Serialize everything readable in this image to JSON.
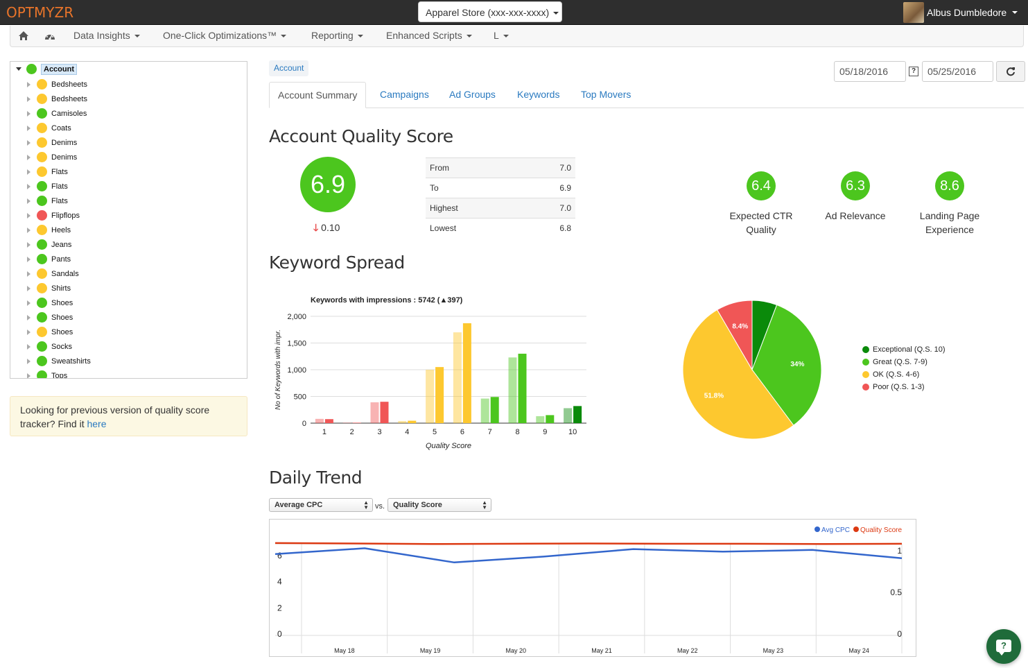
{
  "app": {
    "logo": "OPTMYZR",
    "store": "Apparel Store (xxx-xxx-xxxx)",
    "user": "Albus Dumbledore"
  },
  "nav": {
    "items": [
      "Data Insights",
      "One-Click Optimizations™",
      "Reporting",
      "Enhanced Scripts",
      "L"
    ]
  },
  "tree": {
    "root": "Account",
    "items": [
      {
        "label": "Bedsheets",
        "status": "yellow"
      },
      {
        "label": "Bedsheets",
        "status": "yellow"
      },
      {
        "label": "Camisoles",
        "status": "green"
      },
      {
        "label": "Coats",
        "status": "yellow"
      },
      {
        "label": "Denims",
        "status": "yellow"
      },
      {
        "label": "Denims",
        "status": "yellow"
      },
      {
        "label": "Flats",
        "status": "yellow"
      },
      {
        "label": "Flats",
        "status": "green"
      },
      {
        "label": "Flats",
        "status": "green"
      },
      {
        "label": "Flipflops",
        "status": "red"
      },
      {
        "label": "Heels",
        "status": "yellow"
      },
      {
        "label": "Jeans",
        "status": "green"
      },
      {
        "label": "Pants",
        "status": "green"
      },
      {
        "label": "Sandals",
        "status": "yellow"
      },
      {
        "label": "Shirts",
        "status": "yellow"
      },
      {
        "label": "Shoes",
        "status": "green"
      },
      {
        "label": "Shoes",
        "status": "green"
      },
      {
        "label": "Shoes",
        "status": "yellow"
      },
      {
        "label": "Socks",
        "status": "green"
      },
      {
        "label": "Sweatshirts",
        "status": "green"
      },
      {
        "label": "Tops",
        "status": "green"
      }
    ]
  },
  "notice": {
    "text": "Looking for previous version of quality score tracker? Find it ",
    "link": "here"
  },
  "breadcrumb": "Account",
  "dates": {
    "from": "05/18/2016",
    "to": "05/25/2016",
    "help": "?"
  },
  "tabs": [
    "Account Summary",
    "Campaigns",
    "Ad Groups",
    "Keywords",
    "Top Movers"
  ],
  "quality": {
    "heading": "Account Quality Score",
    "score": "6.9",
    "change": "0.10",
    "table": [
      [
        "From",
        "7.0"
      ],
      [
        "To",
        "6.9"
      ],
      [
        "Highest",
        "7.0"
      ],
      [
        "Lowest",
        "6.8"
      ]
    ],
    "components": [
      {
        "value": "6.4",
        "label_1": "Expected CTR",
        "label_2": "Quality"
      },
      {
        "value": "6.3",
        "label_1": "Ad Relevance",
        "label_2": ""
      },
      {
        "value": "8.6",
        "label_1": "Landing Page",
        "label_2": "Experience"
      }
    ]
  },
  "spread": {
    "heading": "Keyword Spread"
  },
  "trend": {
    "heading": "Daily Trend",
    "select_1": "Average CPC",
    "vs": "vs.",
    "select_2": "Quality Score"
  },
  "colors": {
    "green": "#4cc61e",
    "yellow": "#fdc82f",
    "red": "#f05656",
    "dark_green": "#0a8a0a",
    "accent": "#2a7ac0",
    "logo": "#e8742a"
  },
  "chart_data": [
    {
      "type": "bar",
      "title": "Keywords with impressions : 5742 (▲397)",
      "xlabel": "Quality Score",
      "ylabel": "No of Keywords with impr.",
      "categories": [
        "1",
        "2",
        "3",
        "4",
        "5",
        "6",
        "7",
        "8",
        "9",
        "10"
      ],
      "ylim": [
        0,
        2000
      ],
      "yticks": [
        "0",
        "500",
        "1,000",
        "1,500",
        "2,000"
      ],
      "series": [
        {
          "values": [
            80,
            8,
            390,
            40,
            1000,
            1700,
            460,
            1230,
            130,
            280
          ]
        },
        {
          "values": [
            75,
            8,
            400,
            45,
            1050,
            1870,
            490,
            1300,
            150,
            320
          ]
        }
      ],
      "bar_colors": [
        "#f05656",
        "#f05656",
        "#f05656",
        "#fdc82f",
        "#fdc82f",
        "#fdc82f",
        "#4cc61e",
        "#4cc61e",
        "#4cc61e",
        "#0a8a0a"
      ],
      "grid": true
    },
    {
      "type": "pie",
      "slices": [
        {
          "label": "Exceptional (Q.S. 10)",
          "value": 5.8,
          "color": "#0a8a0a",
          "data_label": ""
        },
        {
          "label": "Great (Q.S. 7-9)",
          "value": 34,
          "color": "#4cc61e",
          "data_label": "34%"
        },
        {
          "label": "OK (Q.S. 4-6)",
          "value": 51.8,
          "color": "#fdc82f",
          "data_label": "51.8%"
        },
        {
          "label": "Poor (Q.S. 1-3)",
          "value": 8.4,
          "color": "#f05656",
          "data_label": "8.4%"
        }
      ],
      "legend": "right"
    },
    {
      "type": "line",
      "x": [
        "May 18",
        "May 19",
        "May 20",
        "May 21",
        "May 22",
        "May 23",
        "May 24"
      ],
      "series": [
        {
          "name": "Avg CPC",
          "color": "#3366cc",
          "points": [
            [
              0,
              0.96
            ],
            [
              1,
              1.03
            ],
            [
              2,
              0.86
            ],
            [
              3,
              0.93
            ],
            [
              4,
              1.02
            ],
            [
              5,
              0.99
            ],
            [
              6,
              1.01
            ],
            [
              7,
              0.91
            ]
          ]
        },
        {
          "name": "Quality Score",
          "color": "#dc3912",
          "points": [
            [
              0,
              6.95
            ],
            [
              1,
              6.92
            ],
            [
              2,
              6.88
            ],
            [
              3,
              6.9
            ],
            [
              4,
              6.92
            ],
            [
              5,
              6.9
            ],
            [
              6,
              6.9
            ],
            [
              7,
              6.88
            ],
            [
              8,
              6.9
            ]
          ]
        }
      ],
      "left_ticks": [
        "0",
        "2",
        "4",
        "6"
      ],
      "right_ticks": [
        "0",
        "0.5",
        "1"
      ],
      "legend": "top-right",
      "grid": true
    }
  ]
}
